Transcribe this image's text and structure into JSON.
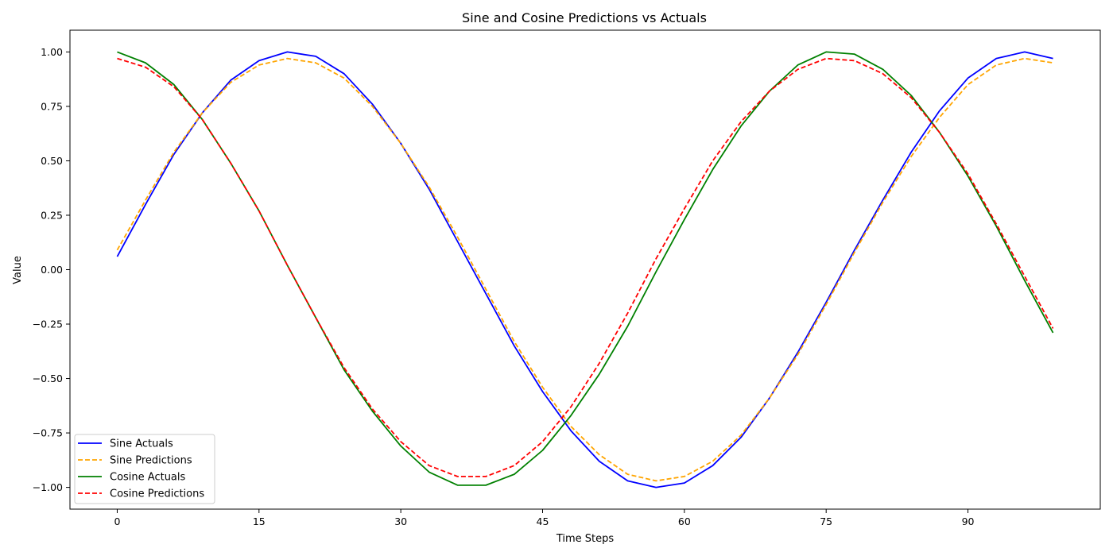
{
  "chart_data": {
    "type": "line",
    "title": "Sine and Cosine Predictions vs Actuals",
    "xlabel": "Time Steps",
    "ylabel": "Value",
    "xlim": [
      -5,
      104
    ],
    "ylim": [
      -1.1,
      1.1
    ],
    "x_ticks": [
      0,
      15,
      30,
      45,
      60,
      75,
      90
    ],
    "x_tick_labels": [
      "0",
      "15",
      "30",
      "45",
      "60",
      "75",
      "90"
    ],
    "y_ticks": [
      -1.0,
      -0.75,
      -0.5,
      -0.25,
      0.0,
      0.25,
      0.5,
      0.75,
      1.0
    ],
    "y_tick_labels": [
      "−1.00",
      "−0.75",
      "−0.50",
      "−0.25",
      "0.00",
      "0.25",
      "0.50",
      "0.75",
      "1.00"
    ],
    "grid": false,
    "legend_position": "lower-left",
    "x": [
      0,
      3,
      6,
      9,
      12,
      15,
      18,
      21,
      24,
      27,
      30,
      33,
      36,
      39,
      42,
      45,
      48,
      51,
      54,
      57,
      60,
      63,
      66,
      69,
      72,
      75,
      78,
      81,
      84,
      87,
      90,
      93,
      96,
      99
    ],
    "series": [
      {
        "name": "Sine Actuals",
        "color": "#0000ff",
        "dash": "solid",
        "values": [
          0.06,
          0.3,
          0.53,
          0.72,
          0.87,
          0.96,
          1.0,
          0.98,
          0.9,
          0.76,
          0.58,
          0.37,
          0.13,
          -0.11,
          -0.35,
          -0.56,
          -0.74,
          -0.88,
          -0.97,
          -1.0,
          -0.98,
          -0.9,
          -0.77,
          -0.59,
          -0.38,
          -0.15,
          0.09,
          0.32,
          0.54,
          0.73,
          0.88,
          0.97,
          1.0,
          0.97
        ]
      },
      {
        "name": "Sine Predictions",
        "color": "#ffa500",
        "dash": "dashed",
        "values": [
          0.09,
          0.32,
          0.54,
          0.72,
          0.86,
          0.94,
          0.97,
          0.95,
          0.88,
          0.75,
          0.58,
          0.38,
          0.15,
          -0.09,
          -0.33,
          -0.54,
          -0.72,
          -0.85,
          -0.94,
          -0.97,
          -0.95,
          -0.88,
          -0.76,
          -0.59,
          -0.39,
          -0.16,
          0.08,
          0.31,
          0.52,
          0.7,
          0.85,
          0.94,
          0.97,
          0.95
        ]
      },
      {
        "name": "Cosine Actuals",
        "color": "#008000",
        "dash": "solid",
        "values": [
          1.0,
          0.95,
          0.85,
          0.69,
          0.49,
          0.27,
          0.02,
          -0.22,
          -0.46,
          -0.65,
          -0.81,
          -0.93,
          -0.99,
          -0.99,
          -0.94,
          -0.83,
          -0.67,
          -0.48,
          -0.26,
          -0.01,
          0.23,
          0.46,
          0.66,
          0.82,
          0.94,
          1.0,
          0.99,
          0.92,
          0.8,
          0.63,
          0.43,
          0.2,
          -0.05,
          -0.29
        ]
      },
      {
        "name": "Cosine Predictions",
        "color": "#ff0000",
        "dash": "dashed",
        "values": [
          0.97,
          0.93,
          0.84,
          0.69,
          0.49,
          0.27,
          0.02,
          -0.22,
          -0.45,
          -0.64,
          -0.79,
          -0.9,
          -0.95,
          -0.95,
          -0.9,
          -0.79,
          -0.63,
          -0.43,
          -0.2,
          0.05,
          0.28,
          0.5,
          0.68,
          0.82,
          0.92,
          0.97,
          0.96,
          0.9,
          0.79,
          0.63,
          0.44,
          0.21,
          -0.03,
          -0.27
        ]
      }
    ]
  }
}
